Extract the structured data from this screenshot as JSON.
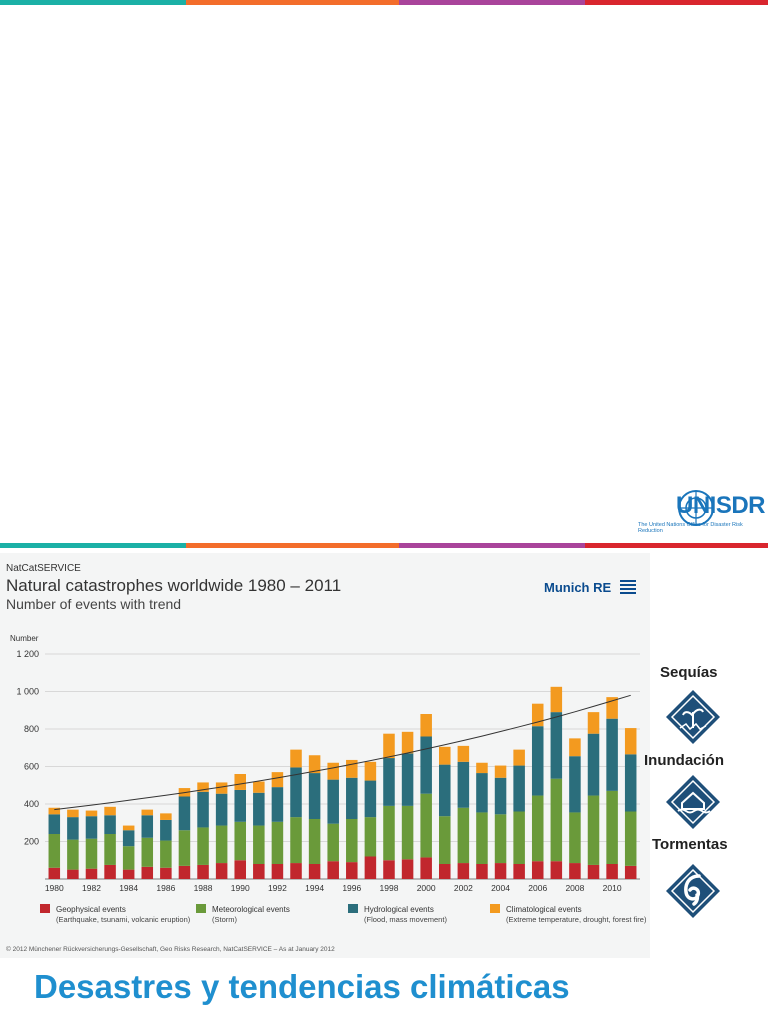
{
  "header": {
    "brand": "UNISDR",
    "brand_subtitle": "The United Nations Office for Disaster Risk Reduction"
  },
  "colors": {
    "teal": "#1bb0a6",
    "orange": "#f36d2b",
    "purple": "#a9449b",
    "red": "#d9262e",
    "title_blue": "#1f8fcf"
  },
  "chart_header": {
    "service": "NatCatSERVICE",
    "title": "Natural catastrophes worldwide 1980 – 2011",
    "subtitle": "Number of events with trend",
    "logo": "Munich RE"
  },
  "copyright": "© 2012 Münchener Rückversicherungs-Gesellschaft, Geo Risks Research, NatCatSERVICE – As at January 2012",
  "side_labels": {
    "sequias": "Sequías",
    "inundacion": "Inundación",
    "tormentas": "Tormentas"
  },
  "slide_title": "Desastres y tendencias climáticas",
  "chart_data": {
    "type": "bar",
    "stacked": true,
    "ylabel": "Number",
    "ylim": [
      0,
      1200
    ],
    "yticks": [
      200,
      400,
      600,
      800,
      1000,
      1200
    ],
    "ytick_labels": [
      "200",
      "400",
      "600",
      "800",
      "1 000",
      "1 200"
    ],
    "categories": [
      "1980",
      "1981",
      "1982",
      "1983",
      "1984",
      "1985",
      "1986",
      "1987",
      "1988",
      "1989",
      "1990",
      "1991",
      "1992",
      "1993",
      "1994",
      "1995",
      "1996",
      "1997",
      "1998",
      "1999",
      "2000",
      "2001",
      "2002",
      "2003",
      "2004",
      "2005",
      "2006",
      "2007",
      "2008",
      "2009",
      "2010",
      "2011"
    ],
    "xtick_labels": [
      "1980",
      "1982",
      "1984",
      "1986",
      "1988",
      "1990",
      "1992",
      "1994",
      "1996",
      "1998",
      "2000",
      "2002",
      "2004",
      "2006",
      "2008",
      "2010"
    ],
    "series": [
      {
        "name": "Geophysical events",
        "desc": "(Earthquake, tsunami, volcanic eruption)",
        "color": "#c1272d",
        "values": [
          60,
          50,
          55,
          75,
          50,
          65,
          60,
          70,
          75,
          85,
          100,
          80,
          80,
          85,
          80,
          95,
          90,
          120,
          100,
          105,
          115,
          80,
          85,
          80,
          85,
          80,
          95,
          95,
          85,
          75,
          80,
          70
        ]
      },
      {
        "name": "Meteorological events",
        "desc": "(Storm)",
        "color": "#6a9a3a",
        "values": [
          180,
          160,
          160,
          165,
          125,
          155,
          145,
          190,
          200,
          200,
          205,
          205,
          225,
          245,
          240,
          200,
          230,
          210,
          290,
          285,
          340,
          255,
          295,
          275,
          260,
          280,
          350,
          440,
          270,
          370,
          390,
          290
        ]
      },
      {
        "name": "Hydrological events",
        "desc": "(Flood, mass movement)",
        "color": "#2b6e7c",
        "values": [
          105,
          120,
          120,
          100,
          85,
          120,
          110,
          180,
          190,
          170,
          170,
          175,
          185,
          265,
          245,
          235,
          220,
          195,
          255,
          280,
          305,
          275,
          245,
          210,
          195,
          245,
          370,
          355,
          300,
          330,
          385,
          305
        ]
      },
      {
        "name": "Climatological events",
        "desc": "(Extreme temperature, drought, forest fire)",
        "color": "#f39a1f",
        "values": [
          35,
          40,
          30,
          45,
          25,
          30,
          35,
          45,
          50,
          60,
          85,
          60,
          80,
          95,
          95,
          90,
          95,
          100,
          130,
          115,
          120,
          95,
          85,
          55,
          65,
          85,
          120,
          135,
          95,
          115,
          115,
          140
        ]
      }
    ],
    "trend": {
      "start": 370,
      "end": 980
    }
  }
}
